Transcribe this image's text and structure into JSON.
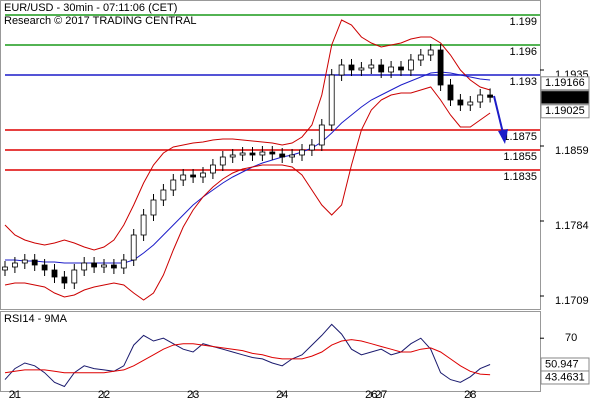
{
  "chart_data": [
    {
      "type": "candlestick",
      "title": "EUR/USD - 30min - 07:11:06 (CET)",
      "subtitle": "Research © 2017 TRADING CENTRAL",
      "categories": [
        null,
        "21",
        null,
        null,
        null,
        null,
        null,
        null,
        null,
        null,
        "22",
        null,
        null,
        null,
        null,
        null,
        null,
        null,
        null,
        "23",
        null,
        null,
        null,
        null,
        null,
        null,
        null,
        null,
        "24",
        null,
        null,
        null,
        null,
        null,
        null,
        null,
        null,
        "26",
        "27",
        null,
        null,
        null,
        null,
        null,
        null,
        null,
        null,
        "28",
        null,
        null
      ],
      "open": [
        1.1735,
        1.1738,
        1.1742,
        1.1745,
        1.174,
        1.1735,
        1.1728,
        1.1722,
        1.1735,
        1.1742,
        1.1738,
        1.174,
        1.1737,
        1.1745,
        1.177,
        1.179,
        1.1805,
        1.1815,
        1.1825,
        1.183,
        1.1828,
        1.1832,
        1.184,
        1.1848,
        1.185,
        1.1852,
        1.185,
        1.1853,
        1.1851,
        1.1848,
        1.185,
        1.1855,
        1.186,
        1.188,
        1.193,
        1.194,
        1.1935,
        1.1937,
        1.194,
        1.1933,
        1.1938,
        1.1935,
        1.1945,
        1.195,
        1.1955,
        1.192,
        1.1905,
        1.19,
        1.1903,
        1.191
      ],
      "high": [
        1.1744,
        1.1748,
        1.1751,
        1.1751,
        1.1746,
        1.1741,
        1.1734,
        1.1741,
        1.1748,
        1.1748,
        1.1746,
        1.1746,
        1.1751,
        1.1776,
        1.1796,
        1.1811,
        1.1821,
        1.1831,
        1.1836,
        1.1836,
        1.1838,
        1.1846,
        1.1854,
        1.1856,
        1.1858,
        1.1858,
        1.1859,
        1.1859,
        1.1857,
        1.1856,
        1.1861,
        1.1866,
        1.1886,
        1.1936,
        1.1946,
        1.1946,
        1.1943,
        1.1946,
        1.1946,
        1.1944,
        1.1944,
        1.1951,
        1.1956,
        1.1961,
        1.1961,
        1.1926,
        1.1911,
        1.1909,
        1.1916,
        1.19166
      ],
      "low": [
        1.1729,
        1.1732,
        1.1736,
        1.1734,
        1.1729,
        1.1722,
        1.1716,
        1.1716,
        1.1729,
        1.1732,
        1.1732,
        1.1731,
        1.1731,
        1.1739,
        1.1764,
        1.1784,
        1.1799,
        1.1809,
        1.1819,
        1.1822,
        1.1822,
        1.1826,
        1.1834,
        1.1842,
        1.1844,
        1.1844,
        1.1844,
        1.1845,
        1.1842,
        1.1842,
        1.1844,
        1.1849,
        1.1854,
        1.1874,
        1.1924,
        1.1929,
        1.1929,
        1.1931,
        1.1927,
        1.1927,
        1.1929,
        1.1929,
        1.1939,
        1.1944,
        1.1914,
        1.1899,
        1.1894,
        1.1894,
        1.1897,
        1.19025
      ],
      "close": [
        1.1738,
        1.1742,
        1.1745,
        1.174,
        1.1735,
        1.1728,
        1.1722,
        1.1735,
        1.1742,
        1.1738,
        1.174,
        1.1737,
        1.1745,
        1.177,
        1.179,
        1.1805,
        1.1815,
        1.1825,
        1.183,
        1.1828,
        1.1832,
        1.184,
        1.1848,
        1.185,
        1.1852,
        1.185,
        1.1853,
        1.1851,
        1.1848,
        1.185,
        1.1855,
        1.186,
        1.188,
        1.193,
        1.194,
        1.1935,
        1.1937,
        1.194,
        1.1933,
        1.1938,
        1.1935,
        1.1945,
        1.195,
        1.1955,
        1.192,
        1.1905,
        1.19,
        1.1903,
        1.191,
        1.19077
      ],
      "series": [
        {
          "color": "#cc0000",
          "values": [
            1.178,
            1.177,
            1.1765,
            1.1762,
            1.176,
            1.1762,
            1.1765,
            1.1762,
            1.1758,
            1.1755,
            1.1758,
            1.1765,
            1.178,
            1.18,
            1.1822,
            1.184,
            1.1852,
            1.1858,
            1.186,
            1.1862,
            1.1863,
            1.1865,
            1.1866,
            1.1866,
            1.1865,
            1.1864,
            1.1863,
            1.1862,
            1.186,
            1.1862,
            1.1868,
            1.188,
            1.191,
            1.196,
            1.1985,
            1.198,
            1.1968,
            1.1962,
            1.1958,
            1.196,
            1.1962,
            1.1966,
            1.1968,
            1.1968,
            1.1962,
            1.195,
            1.1935,
            1.1925,
            1.1918,
            1.1915
          ]
        },
        {
          "color": "#1c1cc8",
          "values": [
            1.1745,
            1.1745,
            1.1744,
            1.1744,
            1.1743,
            1.1743,
            1.1742,
            1.1742,
            1.1742,
            1.1742,
            1.1742,
            1.1742,
            1.1742,
            1.1745,
            1.1752,
            1.176,
            1.177,
            1.178,
            1.179,
            1.18,
            1.1808,
            1.1815,
            1.1822,
            1.1828,
            1.1833,
            1.1838,
            1.1842,
            1.1845,
            1.1848,
            1.185,
            1.1853,
            1.1857,
            1.1863,
            1.1872,
            1.1882,
            1.189,
            1.1898,
            1.1905,
            1.191,
            1.1915,
            1.192,
            1.1924,
            1.1928,
            1.1932,
            1.1933,
            1.1932,
            1.193,
            1.1928,
            1.1926,
            1.1925
          ]
        },
        {
          "color": "#cc0000",
          "values": [
            1.172,
            1.1722,
            1.1722,
            1.172,
            1.1718,
            1.1712,
            1.1708,
            1.171,
            1.1715,
            1.1718,
            1.172,
            1.1722,
            1.172,
            1.1712,
            1.1705,
            1.1712,
            1.173,
            1.1755,
            1.1778,
            1.1795,
            1.1808,
            1.1818,
            1.1826,
            1.1832,
            1.1836,
            1.1838,
            1.184,
            1.184,
            1.184,
            1.1838,
            1.183,
            1.1815,
            1.18,
            1.179,
            1.18,
            1.184,
            1.1875,
            1.1895,
            1.1905,
            1.191,
            1.1912,
            1.1912,
            1.1915,
            1.1918,
            1.1905,
            1.189,
            1.1878,
            1.1878,
            1.1885,
            1.1892
          ]
        }
      ],
      "levels": [
        {
          "value": 1.199,
          "color": "#1a9a1a"
        },
        {
          "value": 1.196,
          "color": "#1a9a1a"
        },
        {
          "value": 1.193,
          "color": "#1c1cc8"
        },
        {
          "value": 1.1875,
          "color": "#dd0000"
        },
        {
          "value": 1.1855,
          "color": "#dd0000"
        },
        {
          "value": 1.1835,
          "color": "#dd0000"
        }
      ],
      "ylim": [
        1.1695,
        1.2005
      ],
      "yticks": [
        1.1935,
        1.1859,
        1.1784,
        1.1709
      ]
    },
    {
      "type": "line",
      "title": "RSI14 - 9MA",
      "series": [
        {
          "color": "#1a1a6e",
          "values": [
            40,
            48,
            52,
            50,
            45,
            38,
            35,
            45,
            50,
            48,
            47,
            46,
            50,
            65,
            72,
            68,
            70,
            66,
            62,
            60,
            66,
            64,
            62,
            60,
            58,
            56,
            55,
            52,
            50,
            55,
            58,
            65,
            72,
            80,
            73,
            62,
            58,
            60,
            62,
            58,
            60,
            66,
            70,
            62,
            45,
            40,
            38,
            42,
            48,
            50.947
          ]
        },
        {
          "color": "#dd0000",
          "values": [
            45,
            46,
            47,
            47,
            47,
            46,
            45,
            45,
            45,
            45,
            45,
            46,
            47,
            50,
            54,
            58,
            62,
            65,
            66,
            66,
            65,
            64,
            63,
            62,
            61,
            59,
            58,
            56,
            55,
            55,
            55,
            57,
            60,
            65,
            68,
            69,
            68,
            66,
            64,
            62,
            60,
            60,
            62,
            63,
            60,
            55,
            50,
            46,
            44,
            43.4631
          ]
        }
      ],
      "ylim": [
        31,
        89
      ],
      "yticks": [
        70
      ]
    }
  ]
}
